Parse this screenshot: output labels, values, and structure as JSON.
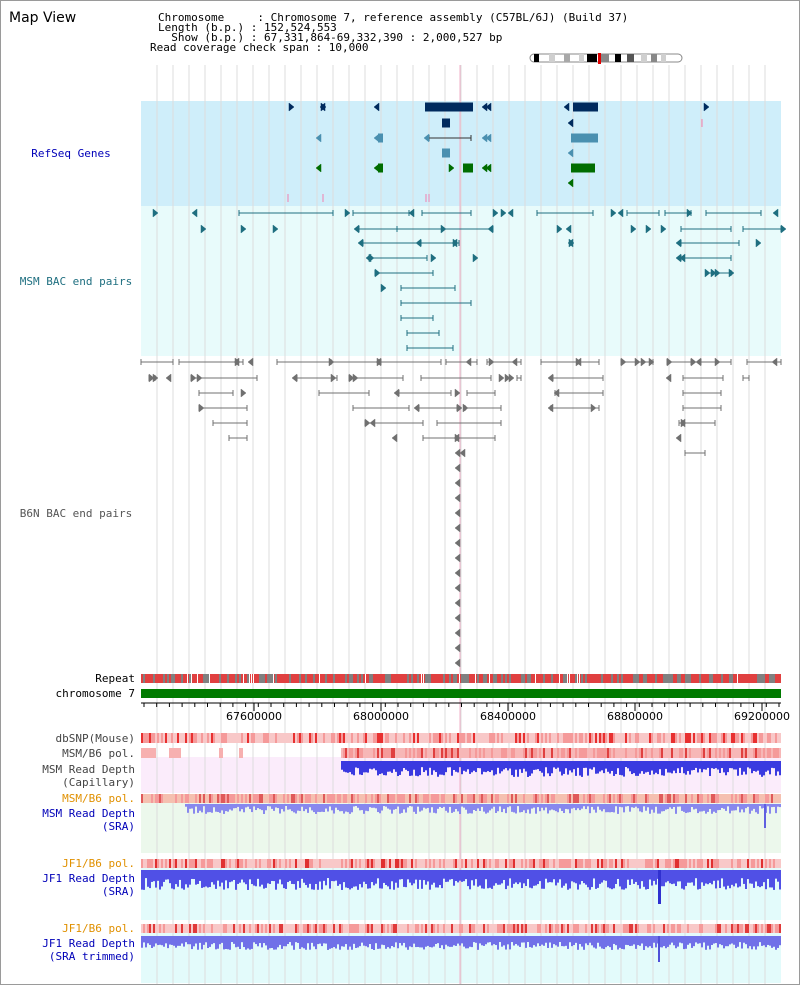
{
  "title": "Map View",
  "info": {
    "chromosome": "Chromosome     : Chromosome 7, reference assembly (C57BL/6J) (Build 37)",
    "length": "Length (b.p.) : 152,524,553",
    "show": "  Show (b.p.) : 67,331,864-69,332,390 : 2,000,527 bp",
    "span": "Read coverage check span : 10,000"
  },
  "tracks": {
    "refseq": "RefSeq Genes",
    "msm_bac": "MSM BAC end pairs",
    "b6n_bac": "B6N BAC end pairs",
    "repeat": "Repeat",
    "chromosome": "chromosome 7",
    "dbsnp": "dbSNP(Mouse)",
    "msm_b6_pol": "MSM/B6 pol.",
    "msm_depth_cap_1": "MSM Read Depth",
    "msm_depth_cap_2": "(Capillary)",
    "msm_b6_pol_2": "MSM/B6 pol.",
    "msm_depth_sra_1": "MSM Read Depth",
    "msm_depth_sra_2": "(SRA)",
    "jf1_b6_pol": "JF1/B6 pol.",
    "jf1_depth_sra_1": "JF1 Read Depth",
    "jf1_depth_sra_2": "(SRA)",
    "jf1_b6_pol_2": "JF1/B6 pol.",
    "jf1_depth_trim_1": "JF1 Read Depth",
    "jf1_depth_trim_2": "(SRA trimmed)"
  },
  "axis": {
    "ticks": [
      "67600000",
      "68000000",
      "68400000",
      "68800000",
      "69200000"
    ]
  },
  "colors": {
    "refseq_bg": "#cfeefa",
    "bac_bg": "#e8fbfb",
    "navy": "#002b5e",
    "teal": "#1f6f80",
    "green": "#006d00",
    "gray": "#707070",
    "red": "#e02020",
    "blue": "#3a3ae0",
    "orange": "#e09000",
    "label_blue": "#0000b8",
    "label_teal": "#1f6f80"
  }
}
